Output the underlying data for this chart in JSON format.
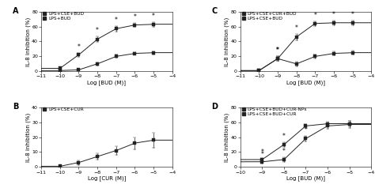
{
  "panel_A": {
    "label": "A",
    "xlabel": "Log [BUD (M)]",
    "ylabel": "IL-8 inhibition (%)",
    "xlim": [
      -11,
      -4
    ],
    "ylim": [
      0,
      80
    ],
    "yticks": [
      0,
      20,
      40,
      60,
      80
    ],
    "xticks": [
      -11,
      -10,
      -9,
      -8,
      -7,
      -6,
      -5,
      -4
    ],
    "series": [
      {
        "label": "LPS+CSE+BUD",
        "x": [
          -10,
          -9,
          -8,
          -7,
          -6,
          -5
        ],
        "y": [
          4,
          22,
          43,
          57,
          62,
          63
        ],
        "yerr": [
          1,
          3,
          4,
          4,
          3,
          3
        ],
        "asterisk": [
          false,
          true,
          true,
          true,
          true,
          true
        ]
      },
      {
        "label": "LPS+BUD",
        "x": [
          -10,
          -9,
          -8,
          -7,
          -6,
          -5
        ],
        "y": [
          1,
          2,
          10,
          20,
          24,
          25
        ],
        "yerr": [
          1,
          1,
          2,
          2,
          2,
          2
        ],
        "asterisk": [
          false,
          false,
          false,
          false,
          false,
          false
        ]
      }
    ]
  },
  "panel_B": {
    "label": "B",
    "xlabel": "Log [CUR (M)]",
    "ylabel": "IL-8 inhibition (%)",
    "xlim": [
      -11,
      -4
    ],
    "ylim": [
      0,
      40
    ],
    "yticks": [
      0,
      10,
      20,
      30,
      40
    ],
    "xticks": [
      -11,
      -10,
      -9,
      -8,
      -7,
      -6,
      -5,
      -4
    ],
    "series": [
      {
        "label": "LPS+CSE+CUR",
        "x": [
          -10,
          -9,
          -8,
          -7,
          -6,
          -5
        ],
        "y": [
          0.5,
          3,
          7,
          11,
          16,
          18
        ],
        "yerr": [
          0.5,
          1.5,
          2,
          3,
          4,
          5
        ],
        "asterisk": [
          false,
          false,
          false,
          false,
          false,
          false
        ]
      }
    ]
  },
  "panel_C": {
    "label": "C",
    "xlabel": "Log [BUD (M)]",
    "ylabel": "IL-8 inhibition (%)",
    "xlim": [
      -11,
      -4
    ],
    "ylim": [
      0,
      80
    ],
    "yticks": [
      0,
      20,
      40,
      60,
      80
    ],
    "xticks": [
      -11,
      -10,
      -9,
      -8,
      -7,
      -6,
      -5,
      -4
    ],
    "series": [
      {
        "label": "LPS+CSE+CUR+BUD",
        "x": [
          -10,
          -9,
          -8,
          -7,
          -6,
          -5
        ],
        "y": [
          1,
          17,
          46,
          64,
          65,
          65
        ],
        "yerr": [
          1,
          3,
          4,
          3,
          3,
          3
        ],
        "asterisk": [
          false,
          true,
          true,
          true,
          true,
          true
        ]
      },
      {
        "label": "LPS+CSE+BUD",
        "x": [
          -10,
          -9,
          -8,
          -7,
          -6,
          -5
        ],
        "y": [
          1,
          17,
          10,
          20,
          24,
          25
        ],
        "yerr": [
          1,
          3,
          3,
          3,
          3,
          3
        ],
        "asterisk": [
          false,
          true,
          false,
          false,
          false,
          false
        ]
      }
    ]
  },
  "panel_D": {
    "label": "D",
    "xlabel": "Log [BUD (M)]",
    "ylabel": "IL-8 inhibition (%)",
    "xlim": [
      -10,
      -4
    ],
    "ylim": [
      0,
      80
    ],
    "yticks": [
      0,
      20,
      40,
      60,
      80
    ],
    "xticks": [
      -10,
      -9,
      -8,
      -7,
      -6,
      -5,
      -4
    ],
    "series": [
      {
        "label": "LPS+CSE+BUD+CUR-NPs",
        "x": [
          -9,
          -8,
          -7,
          -6,
          -5
        ],
        "y": [
          10,
          30,
          55,
          58,
          58
        ],
        "yerr": [
          2,
          3,
          3,
          3,
          4
        ],
        "asterisk": [
          true,
          true,
          false,
          false,
          false
        ]
      },
      {
        "label": "LPS+CSE+BUD+CUR",
        "x": [
          -9,
          -8,
          -7,
          -6,
          -5
        ],
        "y": [
          7,
          10,
          38,
          55,
          57
        ],
        "yerr": [
          2,
          3,
          4,
          4,
          5
        ],
        "asterisk": [
          true,
          true,
          true,
          false,
          false
        ]
      }
    ]
  },
  "line_color": "#222222",
  "marker_size": 3,
  "font_size": 5,
  "label_font_size": 5,
  "tick_font_size": 4.5,
  "legend_font_size": 4.2,
  "panel_label_size": 7
}
